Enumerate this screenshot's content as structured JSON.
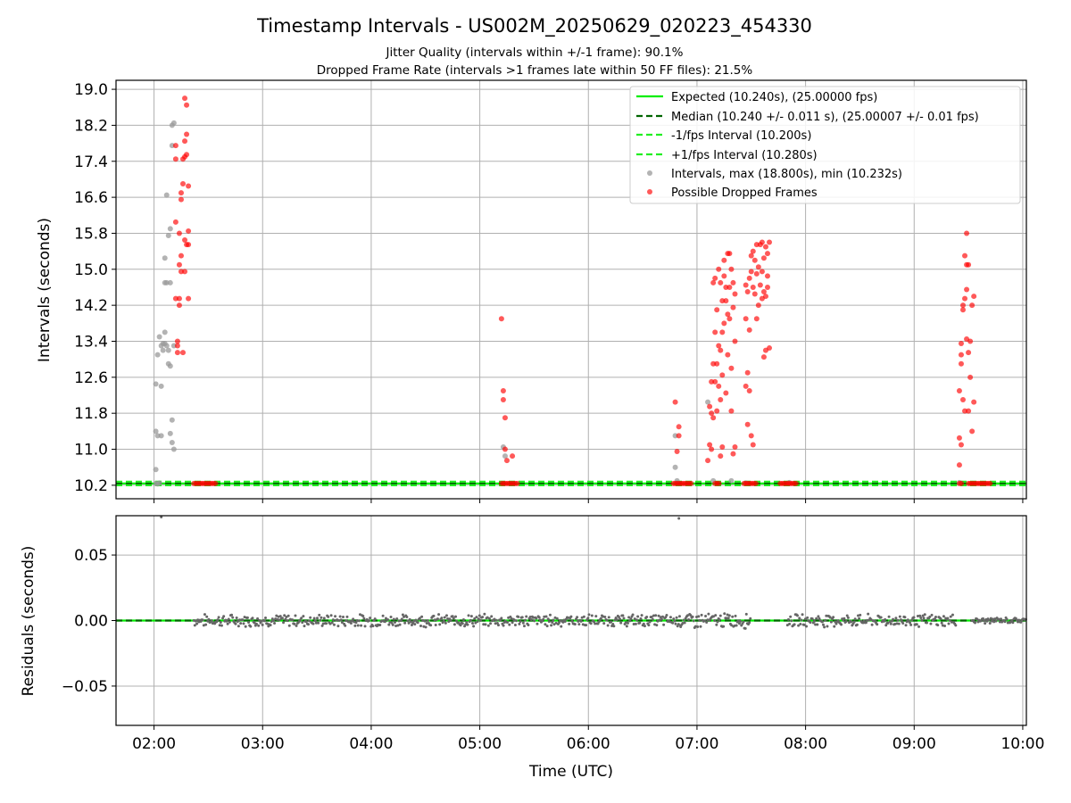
{
  "title": "Timestamp Intervals - US002M_20250629_020223_454330",
  "subtitle_1": "Jitter Quality (intervals within +/-1 frame): 90.1%",
  "subtitle_2": "Dropped Frame Rate (intervals >1 frames late within 50 FF files): 21.5%",
  "colors": {
    "expected": "#00ee00",
    "median": "#006400",
    "bound": "#22ee22",
    "interval_points": "#999999",
    "dropped_points": "#ff0000",
    "residual_points": "#666666",
    "grid": "#b0b0b0"
  },
  "chart_data": [
    {
      "type": "scatter",
      "panel": "intervals",
      "xlabel": "",
      "ylabel": "Intervals (seconds)",
      "ylim": [
        9.9,
        19.2
      ],
      "yticks": [
        10.2,
        11.0,
        11.8,
        12.6,
        13.4,
        14.2,
        15.0,
        15.8,
        16.6,
        17.4,
        18.2,
        19.0
      ],
      "ytick_labels": [
        "10.2",
        "11.0",
        "11.8",
        "12.6",
        "13.4",
        "14.2",
        "15.0",
        "15.8",
        "16.6",
        "17.4",
        "18.2",
        "19.0"
      ],
      "grid": true,
      "legend_position": "top-right",
      "reference_lines": [
        {
          "name": "Expected (10.240s), (25.00000 fps)",
          "y": 10.24,
          "style": "solid",
          "color": "#00ee00"
        },
        {
          "name": "Median (10.240 +/- 0.011 s), (25.00007 +/- 0.01 fps)",
          "y": 10.24,
          "style": "dashed",
          "color": "#006400"
        },
        {
          "name": "-1/fps Interval (10.200s)",
          "y": 10.2,
          "style": "dashed",
          "color": "#22ee22"
        },
        {
          "name": "+1/fps Interval (10.280s)",
          "y": 10.28,
          "style": "dashed",
          "color": "#22ee22"
        }
      ],
      "series": [
        {
          "name": "Intervals, max (18.800s), min (10.232s)",
          "color": "#999999",
          "points": [
            [
              "02:00",
              12.45
            ],
            [
              "02:00",
              11.4
            ],
            [
              "02:00",
              10.55
            ],
            [
              "02:01",
              13.1
            ],
            [
              "02:01",
              11.3
            ],
            [
              "02:02",
              13.5
            ],
            [
              "02:03",
              12.4
            ],
            [
              "02:03",
              13.3
            ],
            [
              "02:03",
              11.3
            ],
            [
              "02:04",
              13.35
            ],
            [
              "02:04",
              13.2
            ],
            [
              "02:05",
              13.6
            ],
            [
              "02:05",
              14.7
            ],
            [
              "02:05",
              15.25
            ],
            [
              "02:05",
              13.35
            ],
            [
              "02:06",
              16.65
            ],
            [
              "02:06",
              14.7
            ],
            [
              "02:06",
              13.3
            ],
            [
              "02:07",
              15.75
            ],
            [
              "02:07",
              13.2
            ],
            [
              "02:07",
              12.9
            ],
            [
              "02:08",
              14.7
            ],
            [
              "02:08",
              15.9
            ],
            [
              "02:08",
              11.35
            ],
            [
              "02:08",
              12.85
            ],
            [
              "02:09",
              18.2
            ],
            [
              "02:09",
              17.75
            ],
            [
              "02:09",
              11.65
            ],
            [
              "02:09",
              11.15
            ],
            [
              "02:10",
              18.25
            ],
            [
              "02:10",
              13.3
            ],
            [
              "02:10",
              11.0
            ],
            [
              "02:00",
              10.24
            ],
            [
              "02:01",
              10.23
            ],
            [
              "02:02",
              10.25
            ],
            [
              "05:12",
              11.05
            ],
            [
              "05:13",
              10.85
            ],
            [
              "06:47",
              11.3
            ],
            [
              "06:47",
              10.6
            ],
            [
              "06:48",
              10.3
            ],
            [
              "07:05",
              12.05
            ],
            [
              "07:08",
              10.3
            ],
            [
              "07:18",
              10.3
            ],
            [
              "07:26",
              10.25
            ],
            [
              "07:50",
              10.26
            ],
            [
              "09:24",
              10.26
            ]
          ]
        },
        {
          "name": "Possible Dropped Frames",
          "color": "#ff0000",
          "points": [
            [
              "02:11",
              17.45
            ],
            [
              "02:11",
              17.75
            ],
            [
              "02:11",
              16.05
            ],
            [
              "02:11",
              14.35
            ],
            [
              "02:12",
              13.4
            ],
            [
              "02:12",
              13.15
            ],
            [
              "02:12",
              13.3
            ],
            [
              "02:13",
              15.1
            ],
            [
              "02:13",
              15.8
            ],
            [
              "02:13",
              14.2
            ],
            [
              "02:13",
              14.35
            ],
            [
              "02:14",
              16.7
            ],
            [
              "02:14",
              16.55
            ],
            [
              "02:14",
              15.3
            ],
            [
              "02:14",
              14.95
            ],
            [
              "02:15",
              17.45
            ],
            [
              "02:15",
              16.9
            ],
            [
              "02:15",
              13.15
            ],
            [
              "02:16",
              18.8
            ],
            [
              "02:16",
              17.85
            ],
            [
              "02:16",
              17.5
            ],
            [
              "02:16",
              15.65
            ],
            [
              "02:16",
              14.95
            ],
            [
              "02:17",
              18.65
            ],
            [
              "02:17",
              18.0
            ],
            [
              "02:17",
              17.55
            ],
            [
              "02:17",
              15.55
            ],
            [
              "02:18",
              16.85
            ],
            [
              "02:18",
              15.85
            ],
            [
              "02:18",
              15.55
            ],
            [
              "02:18",
              14.35
            ],
            [
              "05:11",
              13.9
            ],
            [
              "05:12",
              12.3
            ],
            [
              "05:12",
              12.1
            ],
            [
              "05:13",
              11.7
            ],
            [
              "05:13",
              11.0
            ],
            [
              "05:14",
              10.75
            ],
            [
              "05:17",
              10.85
            ],
            [
              "06:47",
              12.05
            ],
            [
              "06:48",
              10.95
            ],
            [
              "06:49",
              11.5
            ],
            [
              "06:49",
              11.3
            ],
            [
              "07:05",
              10.75
            ],
            [
              "07:06",
              11.95
            ],
            [
              "07:06",
              11.1
            ],
            [
              "07:07",
              12.5
            ],
            [
              "07:07",
              11.8
            ],
            [
              "07:07",
              11.0
            ],
            [
              "07:08",
              14.7
            ],
            [
              "07:08",
              12.9
            ],
            [
              "07:08",
              11.7
            ],
            [
              "07:09",
              14.8
            ],
            [
              "07:09",
              13.6
            ],
            [
              "07:09",
              12.5
            ],
            [
              "07:10",
              14.1
            ],
            [
              "07:10",
              12.9
            ],
            [
              "07:10",
              11.85
            ],
            [
              "07:11",
              15.0
            ],
            [
              "07:11",
              13.3
            ],
            [
              "07:11",
              12.4
            ],
            [
              "07:12",
              14.7
            ],
            [
              "07:12",
              13.2
            ],
            [
              "07:12",
              12.1
            ],
            [
              "07:12",
              10.85
            ],
            [
              "07:13",
              14.3
            ],
            [
              "07:13",
              13.6
            ],
            [
              "07:13",
              12.65
            ],
            [
              "07:13",
              11.05
            ],
            [
              "07:14",
              15.2
            ],
            [
              "07:14",
              14.85
            ],
            [
              "07:14",
              13.8
            ],
            [
              "07:15",
              14.6
            ],
            [
              "07:15",
              14.3
            ],
            [
              "07:15",
              12.25
            ],
            [
              "07:16",
              15.35
            ],
            [
              "07:16",
              14.0
            ],
            [
              "07:16",
              13.1
            ],
            [
              "07:17",
              15.35
            ],
            [
              "07:17",
              14.6
            ],
            [
              "07:17",
              13.9
            ],
            [
              "07:18",
              15.0
            ],
            [
              "07:18",
              12.8
            ],
            [
              "07:18",
              11.85
            ],
            [
              "07:19",
              14.7
            ],
            [
              "07:19",
              14.15
            ],
            [
              "07:19",
              10.9
            ],
            [
              "07:20",
              14.45
            ],
            [
              "07:20",
              13.4
            ],
            [
              "07:20",
              11.05
            ],
            [
              "07:26",
              14.65
            ],
            [
              "07:26",
              13.9
            ],
            [
              "07:26",
              12.4
            ],
            [
              "07:27",
              14.5
            ],
            [
              "07:27",
              12.7
            ],
            [
              "07:27",
              11.55
            ],
            [
              "07:28",
              14.8
            ],
            [
              "07:28",
              13.65
            ],
            [
              "07:28",
              12.3
            ],
            [
              "07:29",
              15.3
            ],
            [
              "07:29",
              14.95
            ],
            [
              "07:29",
              11.3
            ],
            [
              "07:30",
              15.4
            ],
            [
              "07:30",
              14.6
            ],
            [
              "07:30",
              11.1
            ],
            [
              "07:31",
              15.2
            ],
            [
              "07:31",
              14.45
            ],
            [
              "07:32",
              15.55
            ],
            [
              "07:32",
              14.9
            ],
            [
              "07:32",
              13.9
            ],
            [
              "07:33",
              15.05
            ],
            [
              "07:33",
              14.2
            ],
            [
              "07:34",
              15.55
            ],
            [
              "07:34",
              14.65
            ],
            [
              "07:35",
              15.6
            ],
            [
              "07:35",
              14.95
            ],
            [
              "07:35",
              14.35
            ],
            [
              "07:36",
              15.25
            ],
            [
              "07:36",
              14.5
            ],
            [
              "07:36",
              13.05
            ],
            [
              "07:37",
              15.5
            ],
            [
              "07:37",
              14.4
            ],
            [
              "07:37",
              13.2
            ],
            [
              "07:38",
              15.35
            ],
            [
              "07:38",
              14.85
            ],
            [
              "07:38",
              14.6
            ],
            [
              "07:39",
              13.25
            ],
            [
              "07:39",
              15.6
            ],
            [
              "09:24",
              12.3
            ],
            [
              "09:24",
              11.25
            ],
            [
              "09:24",
              10.65
            ],
            [
              "09:25",
              13.35
            ],
            [
              "09:25",
              13.1
            ],
            [
              "09:25",
              12.9
            ],
            [
              "09:25",
              11.1
            ],
            [
              "09:26",
              14.2
            ],
            [
              "09:26",
              14.1
            ],
            [
              "09:26",
              12.1
            ],
            [
              "09:27",
              15.3
            ],
            [
              "09:27",
              14.35
            ],
            [
              "09:27",
              11.85
            ],
            [
              "09:28",
              15.8
            ],
            [
              "09:28",
              15.1
            ],
            [
              "09:28",
              14.55
            ],
            [
              "09:28",
              13.45
            ],
            [
              "09:29",
              15.1
            ],
            [
              "09:29",
              13.15
            ],
            [
              "09:29",
              11.85
            ],
            [
              "09:30",
              13.4
            ],
            [
              "09:30",
              12.6
            ],
            [
              "09:31",
              14.2
            ],
            [
              "09:31",
              11.4
            ],
            [
              "09:32",
              14.4
            ],
            [
              "09:32",
              12.05
            ]
          ],
          "baseline_clusters": [
            {
              "start": "02:22",
              "end": "02:34",
              "y": 10.24
            },
            {
              "start": "05:12",
              "end": "05:21",
              "y": 10.24
            },
            {
              "start": "06:47",
              "end": "06:57",
              "y": 10.24
            },
            {
              "start": "07:10",
              "end": "07:13",
              "y": 10.24
            },
            {
              "start": "07:26",
              "end": "07:33",
              "y": 10.24
            },
            {
              "start": "07:46",
              "end": "07:55",
              "y": 10.24
            },
            {
              "start": "09:25",
              "end": "09:27",
              "y": 10.24
            },
            {
              "start": "09:30",
              "end": "09:43",
              "y": 10.24
            }
          ]
        }
      ]
    },
    {
      "type": "scatter",
      "panel": "residuals",
      "xlabel": "Time (UTC)",
      "ylabel": "Residuals (seconds)",
      "xlim": [
        "01:39",
        "10:02"
      ],
      "ylim": [
        -0.08,
        0.08
      ],
      "yticks": [
        -0.05,
        0.0,
        0.05
      ],
      "ytick_labels": [
        "−0.05",
        "0.00",
        "0.05"
      ],
      "xticks": [
        "02:00",
        "03:00",
        "04:00",
        "05:00",
        "06:00",
        "07:00",
        "08:00",
        "09:00",
        "10:00"
      ],
      "grid": true,
      "reference_lines": [
        {
          "name": "Expected",
          "y": 0.0,
          "style": "solid",
          "color": "#00ee00"
        },
        {
          "name": "Median",
          "y": 0.0,
          "style": "dashed",
          "color": "#006400"
        }
      ],
      "series": [
        {
          "name": "",
          "color": "#666666",
          "segments": [
            {
              "start": "02:22",
              "end": "06:51",
              "spread": 0.004
            },
            {
              "start": "06:51",
              "end": "07:30",
              "spread": 0.005
            },
            {
              "start": "07:50",
              "end": "09:23",
              "spread": 0.004
            },
            {
              "start": "09:32",
              "end": "10:02",
              "spread": 0.002
            }
          ],
          "outliers": [
            [
              "02:04",
              0.079
            ],
            [
              "06:50",
              0.078
            ]
          ]
        }
      ]
    }
  ]
}
